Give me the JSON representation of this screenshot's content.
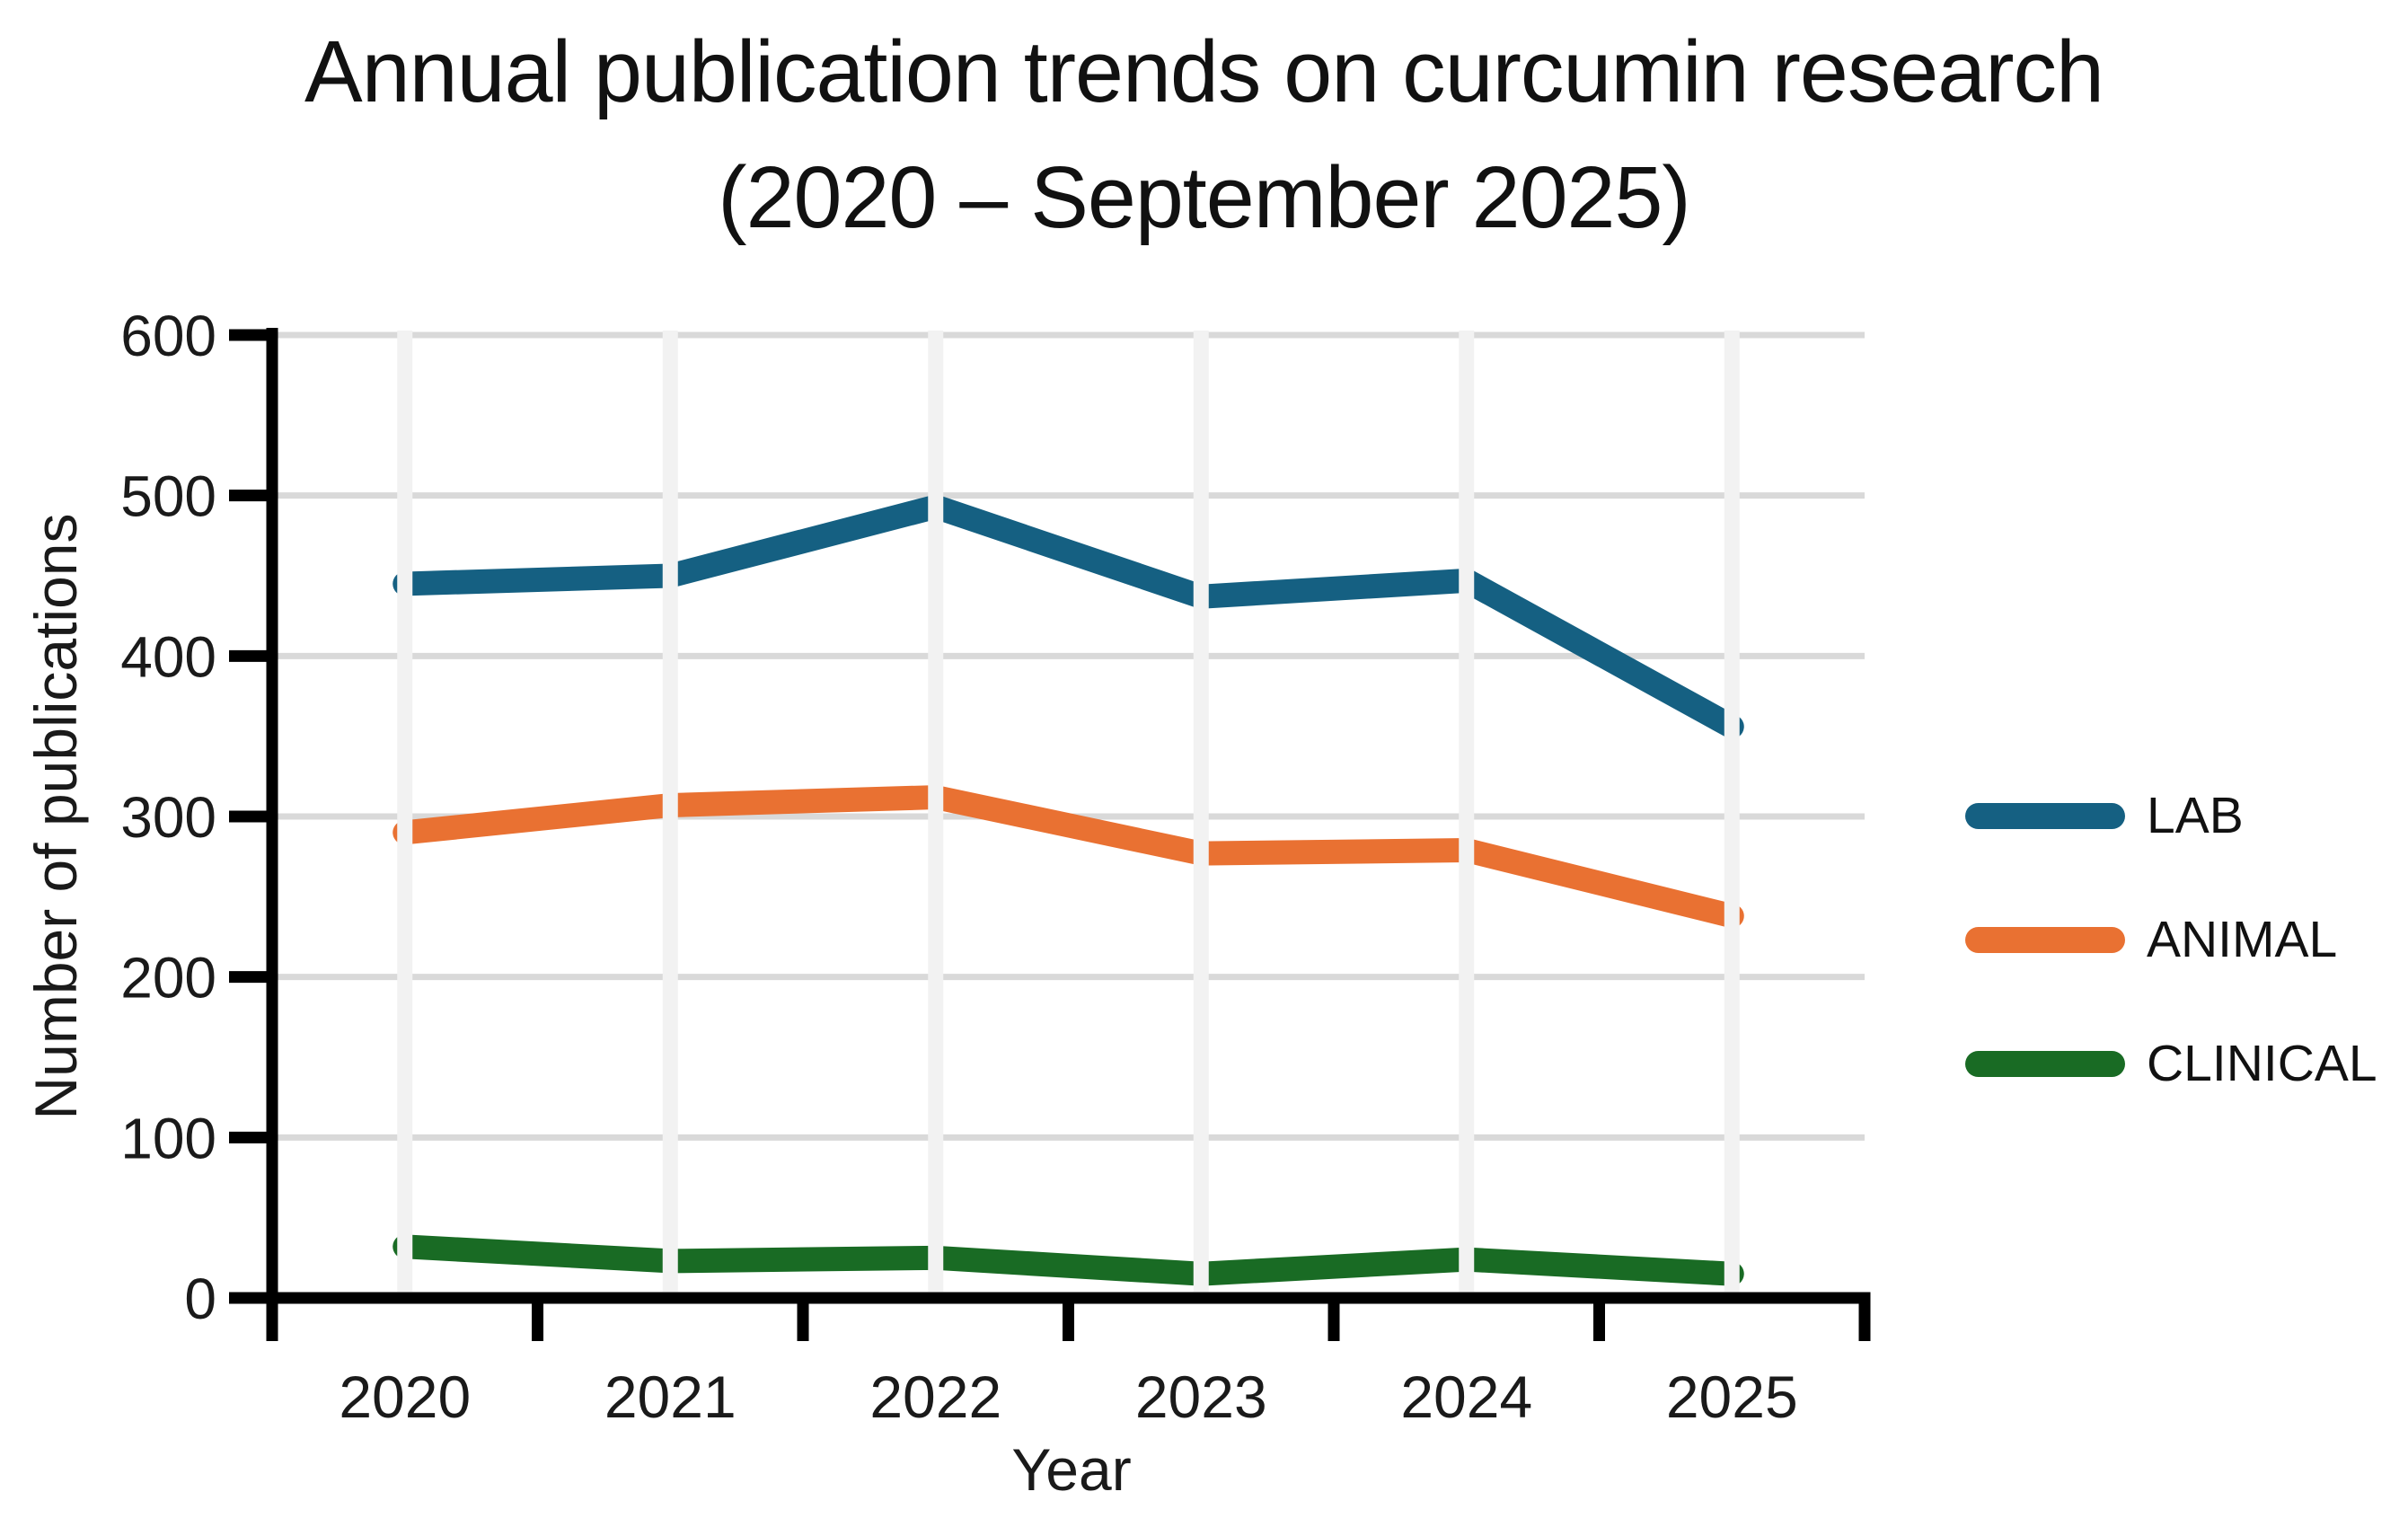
{
  "chart_data": {
    "type": "line",
    "title": "Annual publication trends on curcumin research",
    "subtitle": "(2020 – September 2025)",
    "xlabel": "Year",
    "ylabel": "Number of publications",
    "categories": [
      "2020",
      "2021",
      "2022",
      "2023",
      "2024",
      "2025"
    ],
    "series": [
      {
        "name": "LAB",
        "color": "#156082",
        "values": [
          445,
          450,
          493,
          437,
          447,
          356
        ]
      },
      {
        "name": "ANIMAL",
        "color": "#E97132",
        "values": [
          290,
          307,
          312,
          277,
          279,
          238
        ]
      },
      {
        "name": "CLINICAL",
        "color": "#196B24",
        "values": [
          32,
          23,
          25,
          15,
          24,
          15
        ]
      }
    ],
    "ylim": [
      0,
      600
    ],
    "yticks": [
      0,
      100,
      200,
      300,
      400,
      500,
      600
    ],
    "grid": {
      "horizontal": true,
      "vertical": true
    },
    "legend_position": "right"
  },
  "styles": {
    "text_color": "#1a1a1a",
    "axis_color": "#000000",
    "h_grid_color": "#D9D9D9",
    "v_grid_color": "#F2F2F2",
    "background": "#FFFFFF"
  }
}
